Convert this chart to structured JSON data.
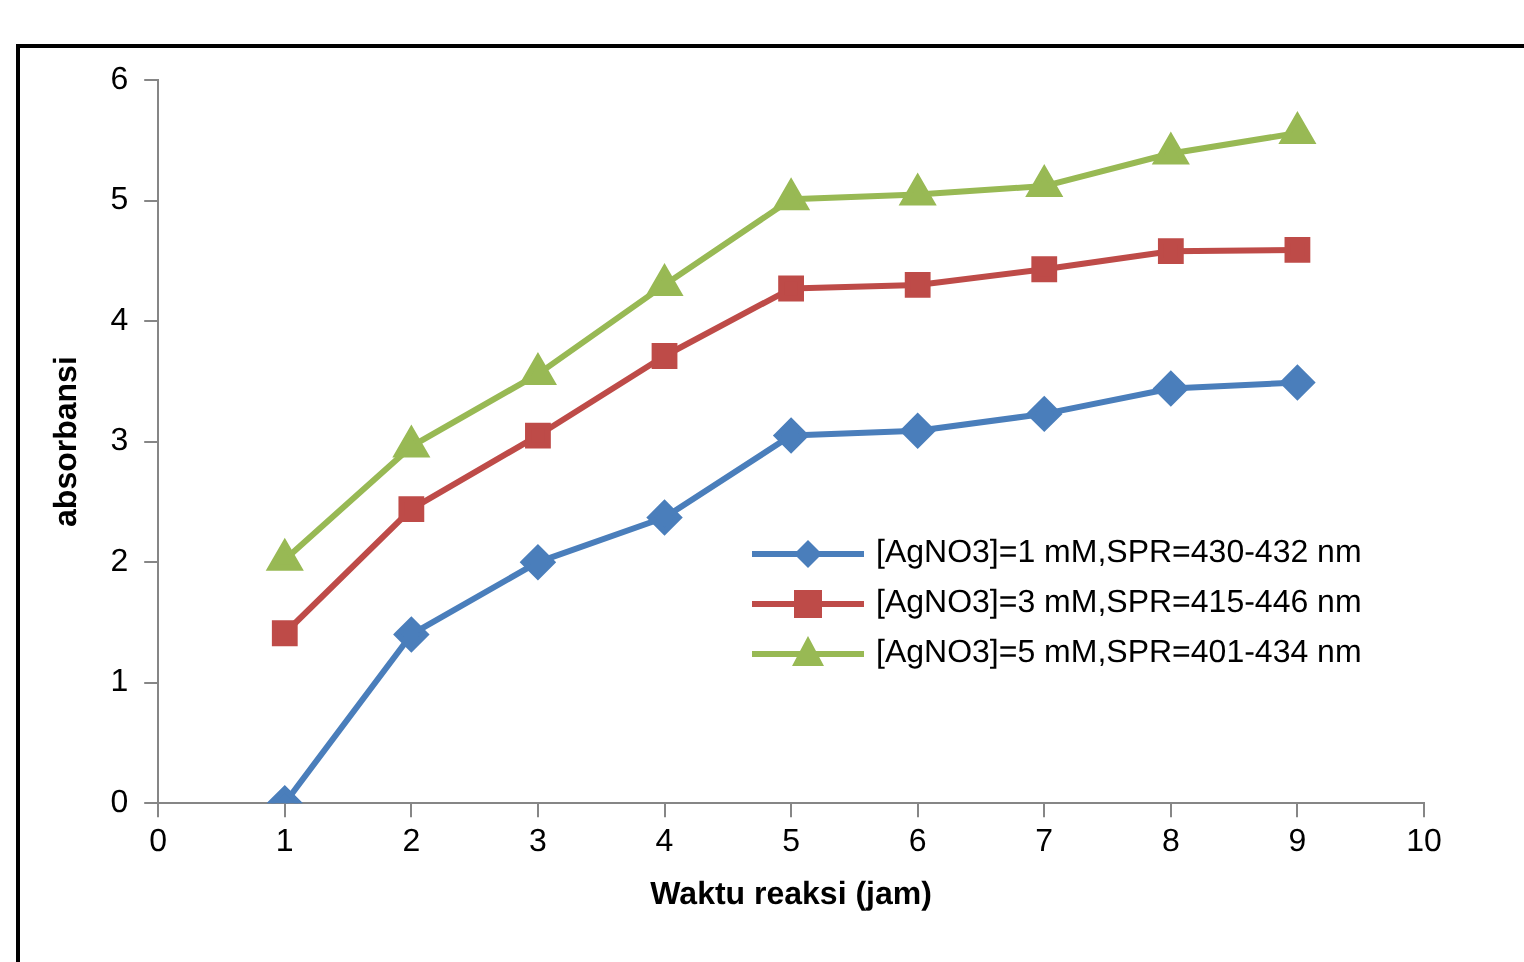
{
  "chart_data": {
    "type": "line",
    "xlabel": "Waktu reaksi (jam)",
    "ylabel": "absorbansi",
    "x": [
      1,
      2,
      3,
      4,
      5,
      6,
      7,
      8,
      9
    ],
    "series": [
      {
        "name": "[AgNO3]=1 mM,SPR=430-432 nm",
        "color": "#4a7ebb",
        "marker": "diamond",
        "values": [
          0,
          1.4,
          2.0,
          2.37,
          3.05,
          3.09,
          3.23,
          3.44,
          3.49
        ]
      },
      {
        "name": "[AgNO3]=3 mM,SPR=415-446 nm",
        "color": "#be4b48",
        "marker": "square",
        "values": [
          1.41,
          2.44,
          3.05,
          3.71,
          4.27,
          4.3,
          4.43,
          4.58,
          4.59
        ]
      },
      {
        "name": "[AgNO3]=5 mM,SPR=401-434 nm",
        "color": "#98b954",
        "marker": "triangle",
        "values": [
          2.02,
          2.96,
          3.56,
          4.3,
          5.01,
          5.05,
          5.12,
          5.39,
          5.56
        ]
      }
    ],
    "xlim": [
      0,
      10
    ],
    "xticks": [
      0,
      1,
      2,
      3,
      4,
      5,
      6,
      7,
      8,
      9,
      10
    ],
    "ylim": [
      0,
      6
    ],
    "yticks": [
      0,
      1,
      2,
      3,
      4,
      5,
      6
    ],
    "grid": false,
    "legend": "bottom right"
  }
}
